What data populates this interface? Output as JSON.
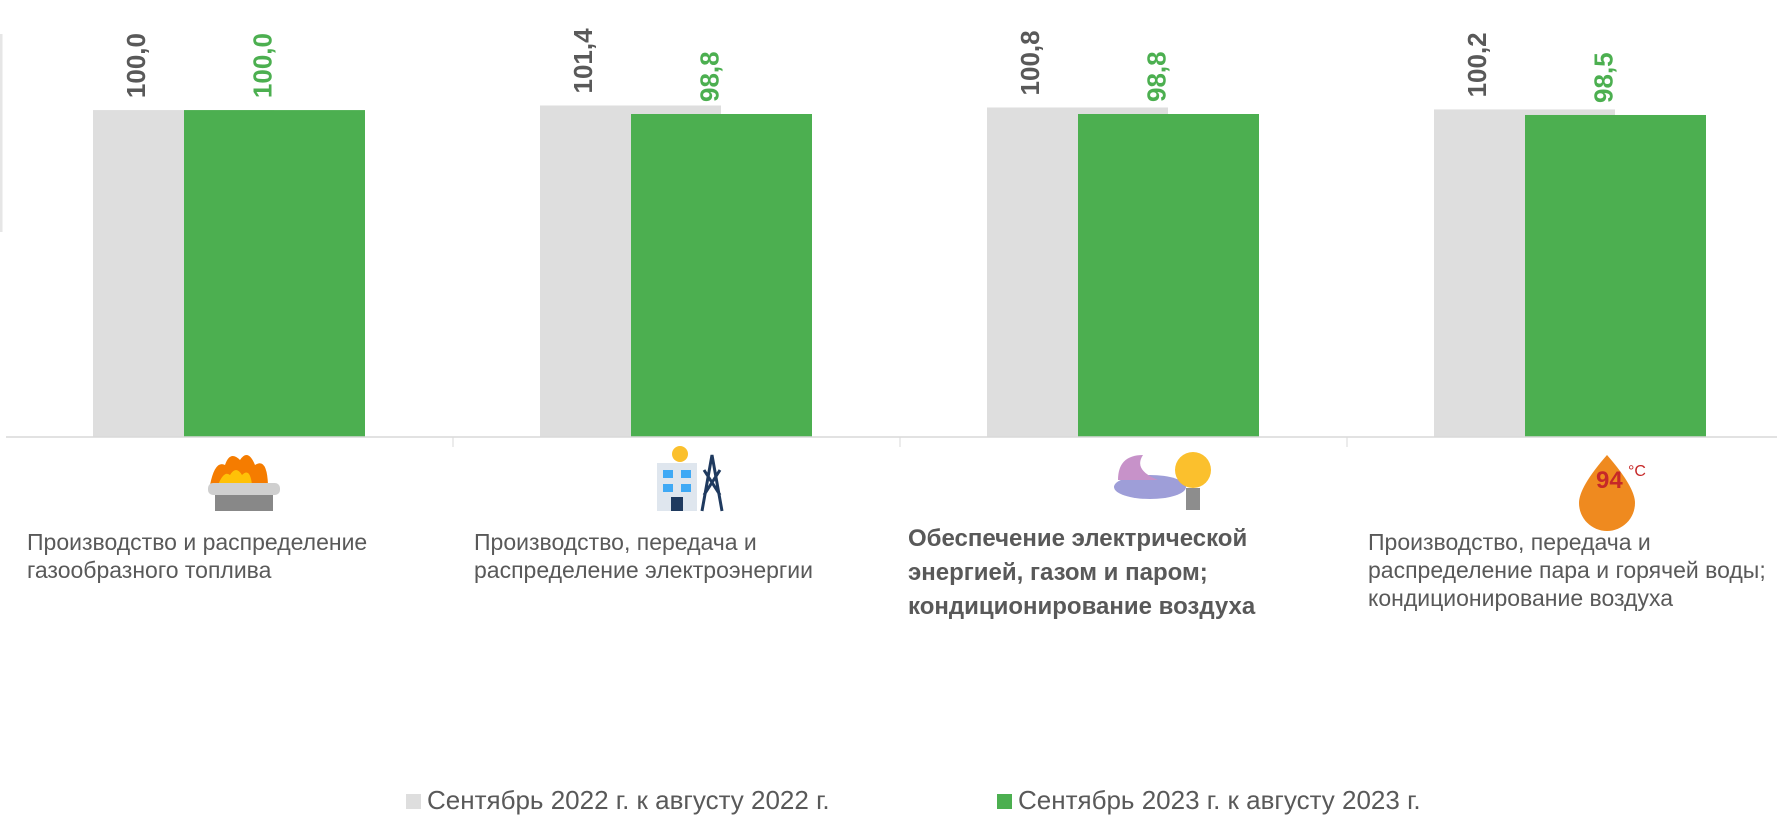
{
  "chart_data": {
    "type": "bar",
    "categories": [
      "Производство и распределение газообразного топлива",
      "Производство, передача и распределение электроэнергии",
      "Обеспечение электрической энергией, газом и паром; кондиционирование воздуха",
      "Производство, передача и распределение пара и горячей воды; кондиционирование воздуха"
    ],
    "series": [
      {
        "name": "Сентябрь 2022 г. к августу 2022 г.",
        "color": "#dedede",
        "label_color": "#595959",
        "values": [
          100.0,
          101.4,
          100.8,
          100.2
        ],
        "value_labels": [
          "100,0",
          "101,4",
          "100,8",
          "100,2"
        ]
      },
      {
        "name": "Сентябрь 2023 г. к августу 2023 г.",
        "color": "#4caf50",
        "label_color": "#4caf50",
        "values": [
          100.0,
          98.8,
          98.8,
          98.5
        ],
        "value_labels": [
          "100,0",
          "98,8",
          "98,8",
          "98,5"
        ]
      }
    ],
    "ylim": [
      0,
      130
    ]
  }
}
